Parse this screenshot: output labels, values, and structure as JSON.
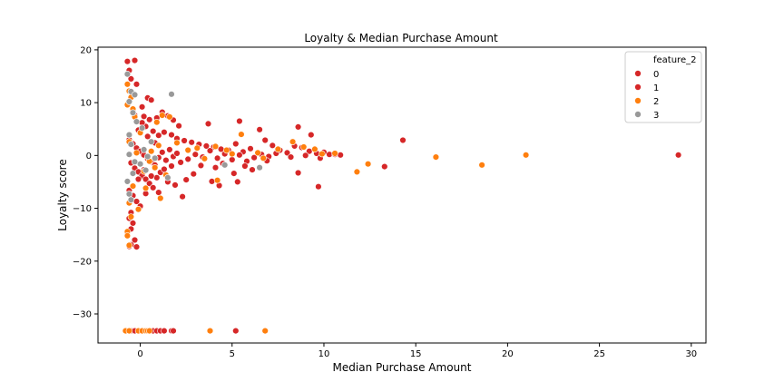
{
  "chart_data": {
    "type": "scatter",
    "title": "Loyalty & Median Purchase Amount",
    "xlabel": "Median Purchase Amount",
    "ylabel": "Loyalty score",
    "xlim": [
      -2.3,
      30.8
    ],
    "ylim": [
      -35.5,
      20.5
    ],
    "xticks": [
      0,
      5,
      10,
      15,
      20,
      25,
      30
    ],
    "yticks": [
      -30,
      -20,
      -10,
      0,
      10,
      20
    ],
    "grid": false,
    "legend": {
      "title": "feature_2",
      "placement": "top-right",
      "entries": [
        "0",
        "1",
        "2",
        "3"
      ]
    },
    "series": [
      {
        "name": "0",
        "color": "#d62728",
        "points": []
      },
      {
        "name": "1",
        "color": "#d62728",
        "points": [
          [
            -0.7,
            17.8
          ],
          [
            -0.3,
            18.0
          ],
          [
            -0.6,
            16.1
          ],
          [
            -0.5,
            14.5
          ],
          [
            -0.2,
            13.5
          ],
          [
            0.4,
            10.9
          ],
          [
            0.6,
            10.5
          ],
          [
            0.1,
            9.2
          ],
          [
            -0.4,
            8.5
          ],
          [
            0.2,
            7.4
          ],
          [
            0.5,
            6.8
          ],
          [
            0.9,
            7.1
          ],
          [
            1.2,
            8.2
          ],
          [
            1.5,
            7.5
          ],
          [
            1.8,
            6.7
          ],
          [
            2.1,
            5.6
          ],
          [
            3.7,
            6.0
          ],
          [
            5.4,
            6.5
          ],
          [
            6.5,
            4.9
          ],
          [
            8.6,
            5.4
          ],
          [
            9.3,
            3.9
          ],
          [
            14.3,
            2.9
          ],
          [
            0.3,
            5.5
          ],
          [
            0.7,
            4.6
          ],
          [
            1.0,
            3.8
          ],
          [
            1.3,
            4.4
          ],
          [
            1.7,
            3.9
          ],
          [
            2.0,
            3.2
          ],
          [
            2.4,
            2.8
          ],
          [
            2.8,
            2.5
          ],
          [
            3.2,
            2.1
          ],
          [
            3.6,
            1.8
          ],
          [
            4.0,
            1.6
          ],
          [
            4.4,
            1.2
          ],
          [
            4.8,
            1.0
          ],
          [
            5.2,
            2.2
          ],
          [
            5.6,
            0.7
          ],
          [
            6.0,
            1.3
          ],
          [
            6.4,
            0.5
          ],
          [
            6.8,
            2.9
          ],
          [
            7.2,
            1.9
          ],
          [
            7.6,
            1.0
          ],
          [
            8.0,
            0.5
          ],
          [
            8.4,
            1.8
          ],
          [
            8.8,
            1.5
          ],
          [
            9.2,
            0.8
          ],
          [
            9.6,
            0.4
          ],
          [
            10.0,
            0.6
          ],
          [
            10.3,
            0.2
          ],
          [
            10.6,
            0.2
          ],
          [
            10.9,
            0.1
          ],
          [
            13.3,
            -2.1
          ],
          [
            29.3,
            0.1
          ],
          [
            -0.6,
            3.0
          ],
          [
            -0.4,
            2.2
          ],
          [
            -0.2,
            1.4
          ],
          [
            0.0,
            0.8
          ],
          [
            0.2,
            0.1
          ],
          [
            0.4,
            -0.6
          ],
          [
            0.6,
            -1.2
          ],
          [
            0.8,
            -1.8
          ],
          [
            1.0,
            -0.4
          ],
          [
            1.2,
            0.6
          ],
          [
            1.4,
            -0.9
          ],
          [
            1.6,
            1.1
          ],
          [
            1.8,
            -0.2
          ],
          [
            2.0,
            0.4
          ],
          [
            2.2,
            -1.3
          ],
          [
            2.6,
            -0.7
          ],
          [
            3.0,
            0.2
          ],
          [
            3.4,
            -0.3
          ],
          [
            3.8,
            0.9
          ],
          [
            4.2,
            -0.5
          ],
          [
            4.6,
            0.3
          ],
          [
            5.0,
            -0.8
          ],
          [
            5.4,
            0.1
          ],
          [
            5.8,
            -1.1
          ],
          [
            6.2,
            -0.4
          ],
          [
            6.6,
            0.2
          ],
          [
            7.0,
            -0.2
          ],
          [
            7.4,
            0.4
          ],
          [
            8.2,
            -0.3
          ],
          [
            9.0,
            0.0
          ],
          [
            9.8,
            -0.5
          ],
          [
            -0.5,
            -1.4
          ],
          [
            -0.3,
            -2.4
          ],
          [
            -0.1,
            -3.1
          ],
          [
            0.1,
            -3.8
          ],
          [
            0.3,
            -4.5
          ],
          [
            0.5,
            -5.3
          ],
          [
            0.7,
            -6.1
          ],
          [
            0.9,
            -4.2
          ],
          [
            1.1,
            -3.2
          ],
          [
            1.3,
            -2.6
          ],
          [
            1.5,
            -5.0
          ],
          [
            1.7,
            -2.0
          ],
          [
            1.9,
            -5.6
          ],
          [
            2.3,
            -7.8
          ],
          [
            2.5,
            -4.6
          ],
          [
            2.9,
            -3.5
          ],
          [
            3.3,
            -1.9
          ],
          [
            3.9,
            -4.9
          ],
          [
            4.1,
            -2.3
          ],
          [
            4.3,
            -5.7
          ],
          [
            4.5,
            -1.5
          ],
          [
            5.1,
            -3.4
          ],
          [
            5.3,
            -5.0
          ],
          [
            5.7,
            -2.0
          ],
          [
            6.1,
            -2.7
          ],
          [
            6.9,
            -1.0
          ],
          [
            8.6,
            -3.3
          ],
          [
            9.7,
            -5.9
          ],
          [
            -0.6,
            -6.6
          ],
          [
            -0.4,
            -7.6
          ],
          [
            -0.2,
            -8.7
          ],
          [
            0.0,
            -9.6
          ],
          [
            -0.5,
            -10.8
          ],
          [
            -0.6,
            -11.9
          ],
          [
            -0.4,
            -12.8
          ],
          [
            -0.5,
            -13.9
          ],
          [
            -0.7,
            -14.8
          ],
          [
            -0.3,
            -16.0
          ],
          [
            -0.5,
            -16.9
          ],
          [
            -0.2,
            -17.3
          ],
          [
            -0.6,
            -17.2
          ],
          [
            -0.1,
            -4.5
          ],
          [
            0.2,
            -2.7
          ],
          [
            0.6,
            -3.9
          ],
          [
            1.0,
            -7.0
          ],
          [
            0.4,
            3.6
          ],
          [
            0.8,
            2.4
          ],
          [
            -0.1,
            4.8
          ],
          [
            0.1,
            6.2
          ],
          [
            -0.3,
            7.6
          ],
          [
            0.3,
            -7.2
          ],
          [
            -0.8,
            -33.2
          ],
          [
            -0.5,
            -33.2
          ],
          [
            -0.3,
            -33.2
          ],
          [
            0.0,
            -33.2
          ],
          [
            0.2,
            -33.2
          ],
          [
            0.7,
            -33.2
          ],
          [
            0.9,
            -33.2
          ],
          [
            1.1,
            -33.2
          ],
          [
            1.3,
            -33.2
          ],
          [
            1.7,
            -33.2
          ],
          [
            1.8,
            -33.2
          ],
          [
            5.2,
            -33.2
          ]
        ]
      },
      {
        "name": "2",
        "color": "#ff7f0e",
        "points": [
          [
            -0.7,
            13.5
          ],
          [
            -0.6,
            12.2
          ],
          [
            -0.5,
            11.0
          ],
          [
            -0.7,
            9.6
          ],
          [
            -0.4,
            8.8
          ],
          [
            -0.3,
            7.3
          ],
          [
            1.2,
            7.6
          ],
          [
            1.6,
            7.3
          ],
          [
            0.9,
            6.3
          ],
          [
            5.5,
            4.0
          ],
          [
            2.0,
            2.4
          ],
          [
            3.1,
            1.4
          ],
          [
            4.1,
            1.7
          ],
          [
            4.7,
            1.0
          ],
          [
            6.4,
            0.5
          ],
          [
            7.5,
            1.2
          ],
          [
            8.3,
            2.6
          ],
          [
            8.9,
            1.6
          ],
          [
            9.5,
            1.2
          ],
          [
            9.9,
            0.3
          ],
          [
            10.6,
            0.4
          ],
          [
            12.4,
            -1.6
          ],
          [
            11.8,
            -3.1
          ],
          [
            16.1,
            -0.3
          ],
          [
            18.6,
            -1.8
          ],
          [
            21.0,
            0.1
          ],
          [
            -0.6,
            2.6
          ],
          [
            -0.2,
            0.5
          ],
          [
            0.5,
            -1.1
          ],
          [
            0.8,
            -2.3
          ],
          [
            1.4,
            -3.7
          ],
          [
            1.1,
            -8.1
          ],
          [
            4.2,
            -4.7
          ],
          [
            0.3,
            -6.2
          ],
          [
            -0.4,
            -5.8
          ],
          [
            -0.6,
            -9.0
          ],
          [
            -0.1,
            -10.2
          ],
          [
            -0.5,
            -11.6
          ],
          [
            -0.7,
            -14.4
          ],
          [
            -0.7,
            -15.2
          ],
          [
            -0.6,
            -17.0
          ],
          [
            0.2,
            -3.0
          ],
          [
            0.6,
            0.8
          ],
          [
            1.0,
            1.9
          ],
          [
            2.6,
            1.0
          ],
          [
            3.5,
            -0.6
          ],
          [
            5.0,
            0.3
          ],
          [
            6.7,
            -0.5
          ],
          [
            0.0,
            4.3
          ],
          [
            -0.8,
            -33.2
          ],
          [
            -0.6,
            -33.2
          ],
          [
            -0.1,
            -33.2
          ],
          [
            0.1,
            -33.2
          ],
          [
            0.3,
            -33.2
          ],
          [
            0.4,
            -33.2
          ],
          [
            0.5,
            -33.2
          ],
          [
            3.8,
            -33.2
          ],
          [
            6.8,
            -33.2
          ]
        ]
      },
      {
        "name": "3",
        "color": "#999999",
        "points": [
          [
            -0.7,
            15.4
          ],
          [
            -0.5,
            12.1
          ],
          [
            -0.3,
            11.5
          ],
          [
            1.7,
            11.6
          ],
          [
            -0.6,
            10.2
          ],
          [
            -0.4,
            8.1
          ],
          [
            -0.2,
            6.4
          ],
          [
            0.1,
            5.2
          ],
          [
            -0.6,
            3.9
          ],
          [
            -0.5,
            2.1
          ],
          [
            0.2,
            1.1
          ],
          [
            0.4,
            -0.2
          ],
          [
            0.0,
            -1.6
          ],
          [
            0.3,
            -2.8
          ],
          [
            -0.4,
            -3.4
          ],
          [
            -0.7,
            -4.9
          ],
          [
            -0.6,
            -7.3
          ],
          [
            -0.5,
            -8.4
          ],
          [
            4.6,
            -1.8
          ],
          [
            6.5,
            -2.3
          ],
          [
            1.5,
            -4.2
          ],
          [
            -0.3,
            -1.2
          ],
          [
            0.6,
            2.6
          ],
          [
            -0.6,
            0.2
          ],
          [
            0.8,
            -0.5
          ]
        ]
      }
    ]
  }
}
